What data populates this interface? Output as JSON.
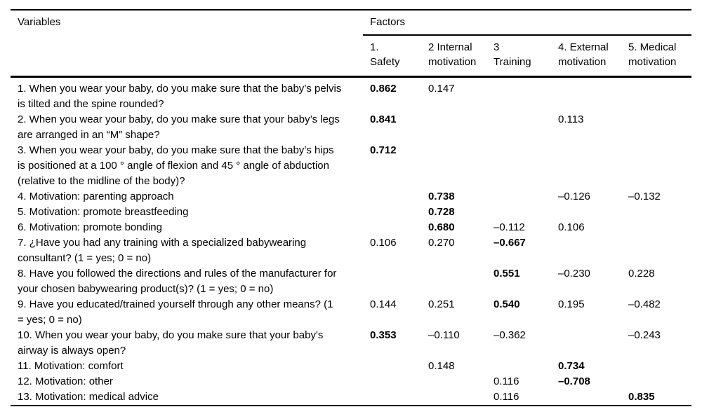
{
  "table": {
    "variables_header": "Variables",
    "factors_header": "Factors",
    "columns": [
      "1.\nSafety",
      "2 Internal\nmotivation",
      "3\nTraining",
      "4. External\nmotivation",
      "5. Medical\nmotivation"
    ],
    "rows": [
      {
        "variable": "1. When you wear your baby, do you make sure that the baby’s pelvis is tilted and the spine rounded?",
        "values": [
          {
            "text": "0.862",
            "bold": true
          },
          {
            "text": "0.147",
            "bold": false
          },
          null,
          null,
          null
        ]
      },
      {
        "variable": "2. When you wear your baby, do you make sure that your baby’s legs are arranged in an “M” shape?",
        "values": [
          {
            "text": "0.841",
            "bold": true
          },
          null,
          null,
          {
            "text": "0.113",
            "bold": false
          },
          null
        ]
      },
      {
        "variable": "3. When you wear your baby, do you make sure that the baby’s hips is positioned at a 100 ° angle of flexion and 45 ° angle of abduction (relative to the midline of the body)?",
        "values": [
          {
            "text": "0.712",
            "bold": true
          },
          null,
          null,
          null,
          null
        ]
      },
      {
        "variable": "4. Motivation: parenting approach",
        "values": [
          null,
          {
            "text": "0.738",
            "bold": true
          },
          null,
          {
            "text": "–0.126",
            "bold": false
          },
          {
            "text": "–0.132",
            "bold": false
          }
        ]
      },
      {
        "variable": "5. Motivation: promote breastfeeding",
        "values": [
          null,
          {
            "text": "0.728",
            "bold": true
          },
          null,
          null,
          null
        ]
      },
      {
        "variable": "6. Motivation: promote bonding",
        "values": [
          null,
          {
            "text": "0.680",
            "bold": true
          },
          {
            "text": "–0.112",
            "bold": false
          },
          {
            "text": "0.106",
            "bold": false
          },
          null
        ]
      },
      {
        "variable": "7. ¿Have you had any training with a specialized babywearing consultant? (1 = yes; 0 = no)",
        "values": [
          {
            "text": "0.106",
            "bold": false
          },
          {
            "text": "0.270",
            "bold": false
          },
          {
            "text": "–0.667",
            "bold": true
          },
          null,
          null
        ]
      },
      {
        "variable": "8. Have you followed the directions and rules of the manufacturer for your chosen babywearing product(s)? (1 = yes; 0 = no)",
        "values": [
          null,
          null,
          {
            "text": "0.551",
            "bold": true
          },
          {
            "text": "–0.230",
            "bold": false
          },
          {
            "text": "0.228",
            "bold": false
          }
        ]
      },
      {
        "variable": "9. Have you educated/trained yourself through any other means? (1 = yes; 0 = no)",
        "values": [
          {
            "text": "0.144",
            "bold": false
          },
          {
            "text": "0.251",
            "bold": false
          },
          {
            "text": "0.540",
            "bold": true
          },
          {
            "text": "0.195",
            "bold": false
          },
          {
            "text": "–0.482",
            "bold": false
          }
        ]
      },
      {
        "variable": "10. When you wear your baby, do you make sure that your baby's airway is always open?",
        "values": [
          {
            "text": "0.353",
            "bold": true
          },
          {
            "text": "–0.110",
            "bold": false
          },
          {
            "text": "–0.362",
            "bold": false
          },
          null,
          {
            "text": "–0.243",
            "bold": false
          }
        ]
      },
      {
        "variable": "11. Motivation: comfort",
        "values": [
          null,
          {
            "text": "0.148",
            "bold": false
          },
          null,
          {
            "text": "0.734",
            "bold": true
          },
          null
        ]
      },
      {
        "variable": "12. Motivation: other",
        "values": [
          null,
          null,
          {
            "text": "0.116",
            "bold": false
          },
          {
            "text": "–0.708",
            "bold": true
          },
          null
        ]
      },
      {
        "variable": "13. Motivation: medical advice",
        "values": [
          null,
          null,
          {
            "text": "0.116",
            "bold": false
          },
          null,
          {
            "text": "0.835",
            "bold": true
          }
        ]
      }
    ]
  }
}
